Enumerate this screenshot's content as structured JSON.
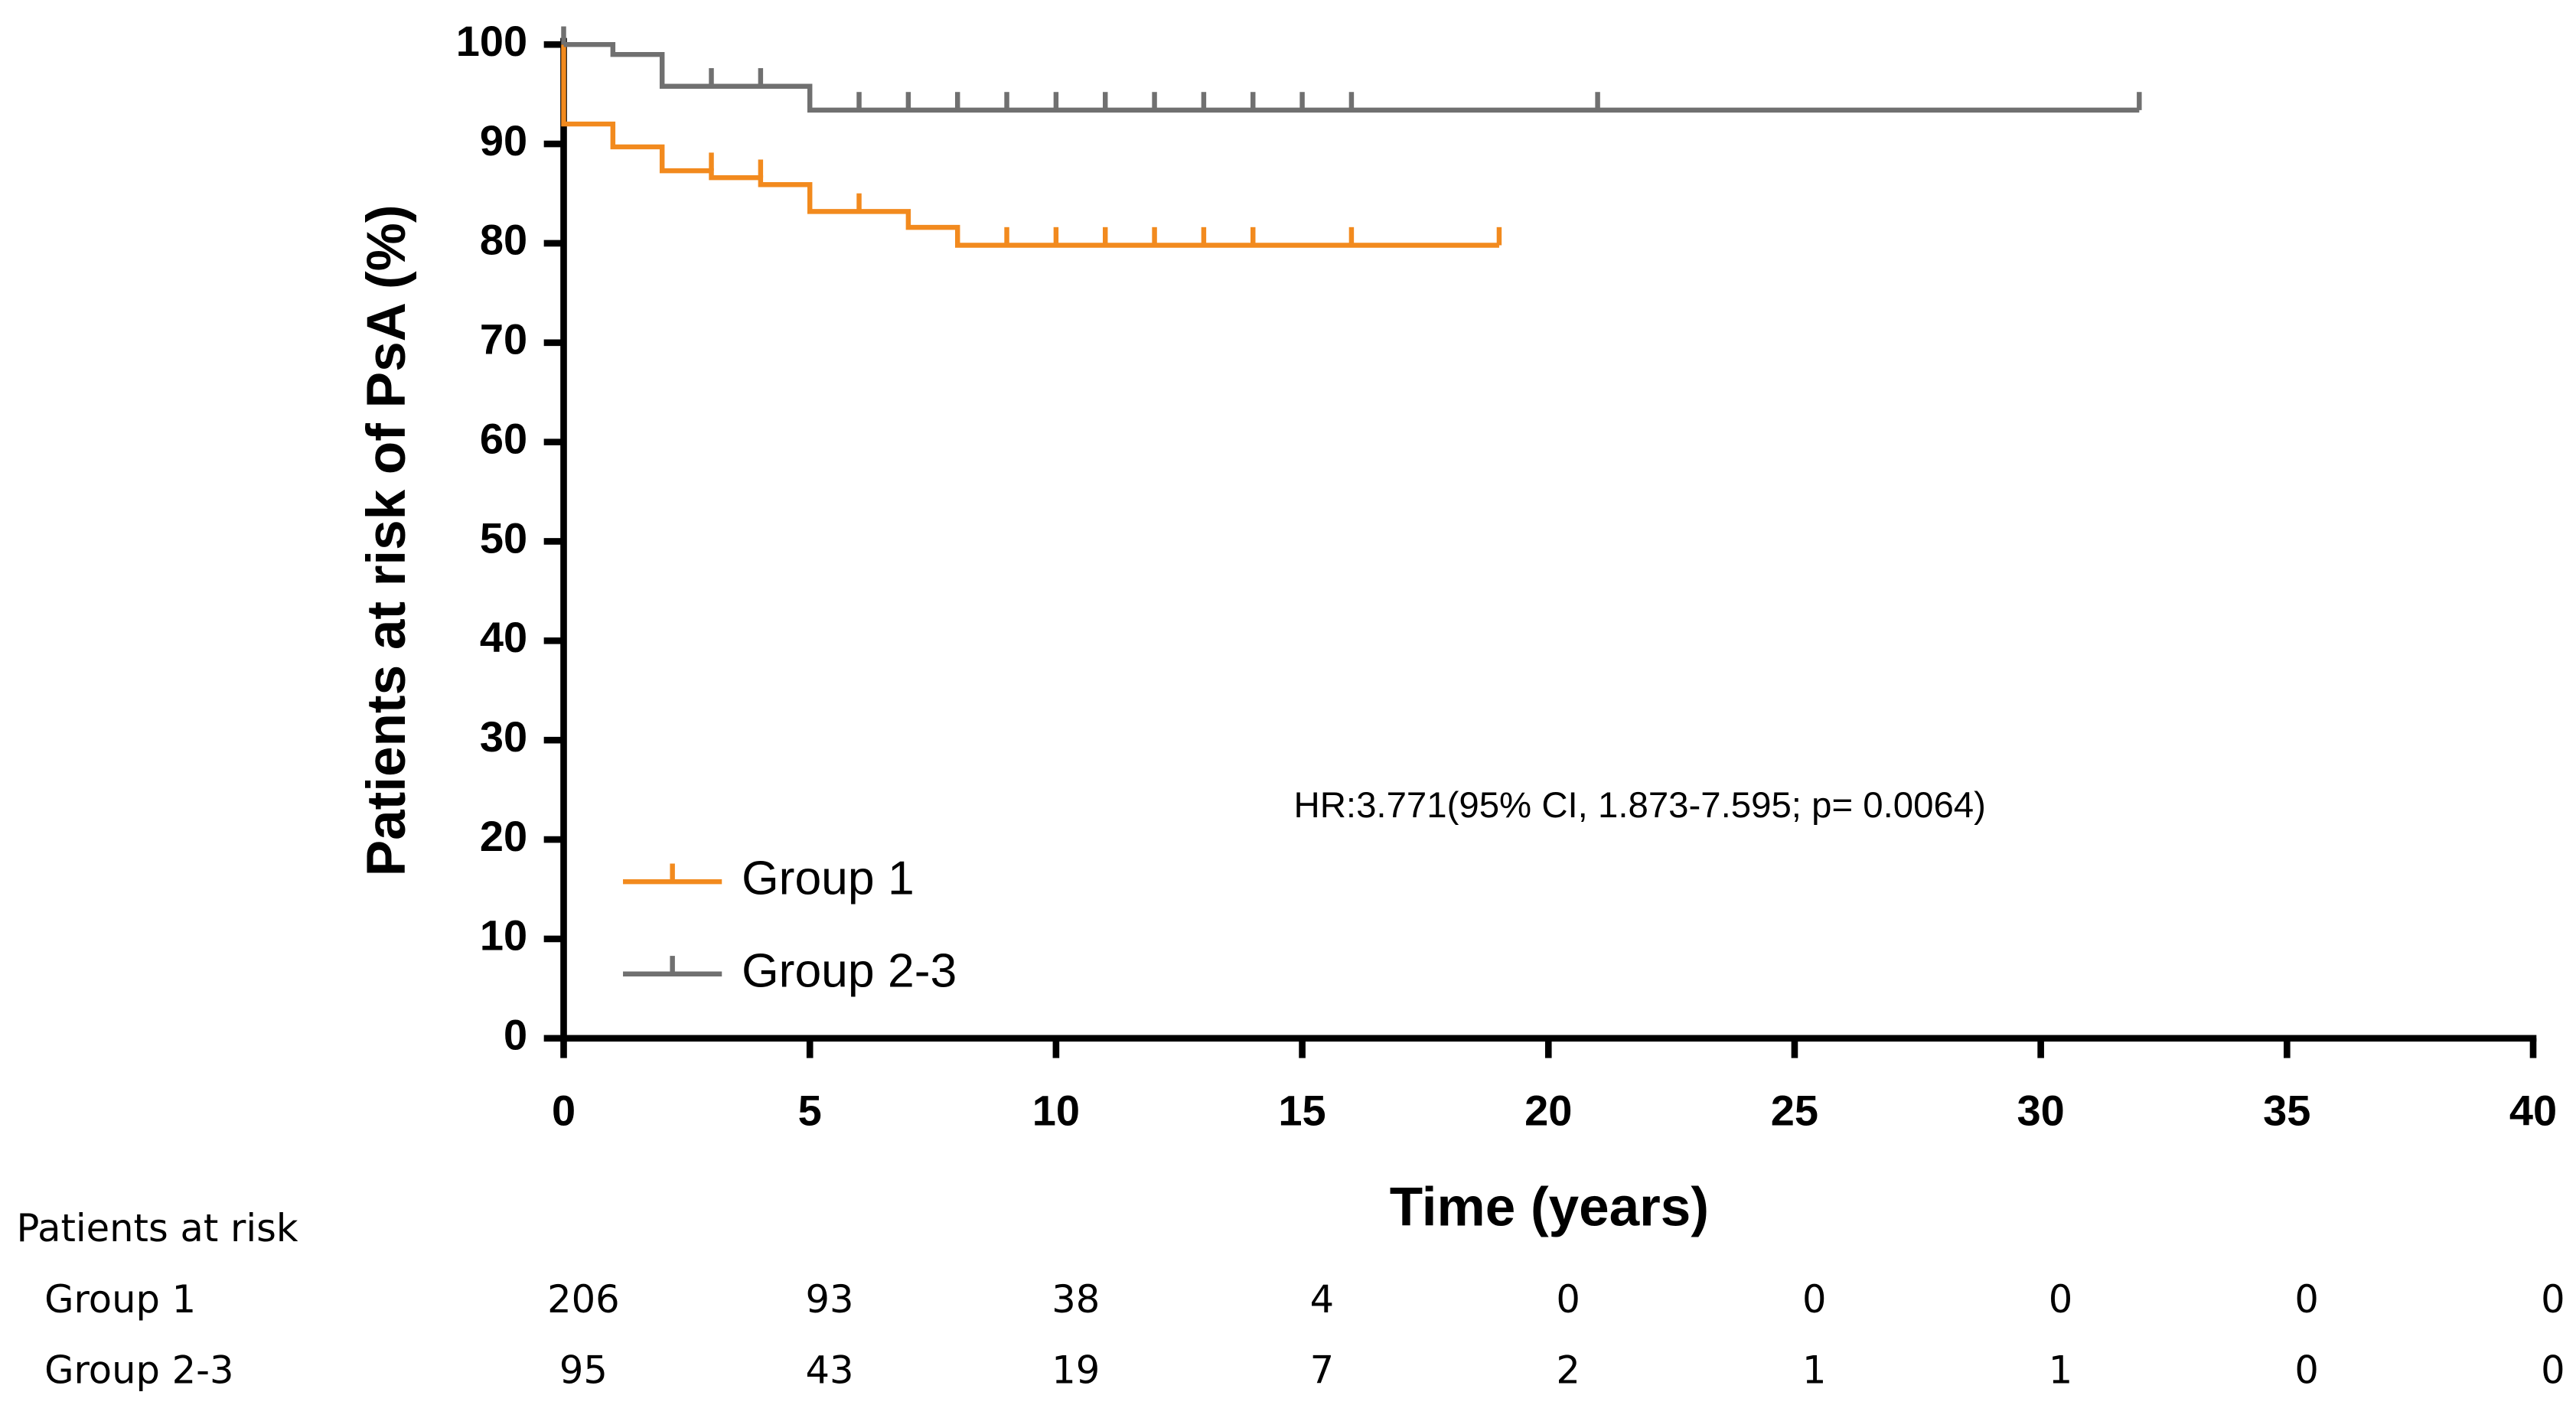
{
  "chart_data": {
    "type": "step",
    "ylabel": "Patients at risk of PsA  (%)",
    "xlabel": "Time (years)",
    "annotation": "HR:3.771(95% CI, 1.873-7.595; p= 0.0064)",
    "xlim": [
      0,
      40
    ],
    "xticks": [
      0,
      5,
      10,
      15,
      20,
      25,
      30,
      35,
      40
    ],
    "ylim": [
      0,
      100
    ],
    "yticks": [
      0,
      10,
      20,
      30,
      40,
      50,
      60,
      70,
      80,
      90,
      100
    ],
    "legend": "lower-left",
    "series": [
      {
        "name": "Group 1",
        "color": "#f28a1e",
        "x": [
          0,
          0,
          1,
          2,
          3,
          4,
          5,
          7,
          8,
          19
        ],
        "values": [
          100,
          92,
          89.7,
          87.3,
          86.6,
          85.9,
          83.2,
          81.6,
          79.8,
          79.8
        ],
        "censor_x": [
          3,
          4,
          6,
          9,
          10,
          11,
          12,
          13,
          14,
          16,
          19
        ],
        "censor_values": [
          87.3,
          86.6,
          83.2,
          79.8,
          79.8,
          79.8,
          79.8,
          79.8,
          79.8,
          79.8,
          79.8
        ]
      },
      {
        "name": "Group 2-3",
        "color": "#707070",
        "x": [
          0,
          1,
          2,
          5,
          32
        ],
        "values": [
          100,
          99,
          95.8,
          93.4,
          93.4
        ],
        "censor_x": [
          0,
          3,
          4,
          6,
          7,
          8,
          9,
          10,
          11,
          12,
          13,
          14,
          15,
          16,
          21,
          32
        ],
        "censor_values": [
          100,
          95.8,
          95.8,
          93.4,
          93.4,
          93.4,
          93.4,
          93.4,
          93.4,
          93.4,
          93.4,
          93.4,
          93.4,
          93.4,
          93.4,
          93.4
        ]
      }
    ],
    "risk_table": {
      "title": "Patients at risk",
      "rows": [
        {
          "name": "Group 1",
          "values": [
            206,
            93,
            38,
            4,
            0,
            0,
            0,
            0,
            0
          ]
        },
        {
          "name": "Group 2-3",
          "values": [
            95,
            43,
            19,
            7,
            2,
            1,
            1,
            0,
            0
          ]
        }
      ]
    }
  }
}
